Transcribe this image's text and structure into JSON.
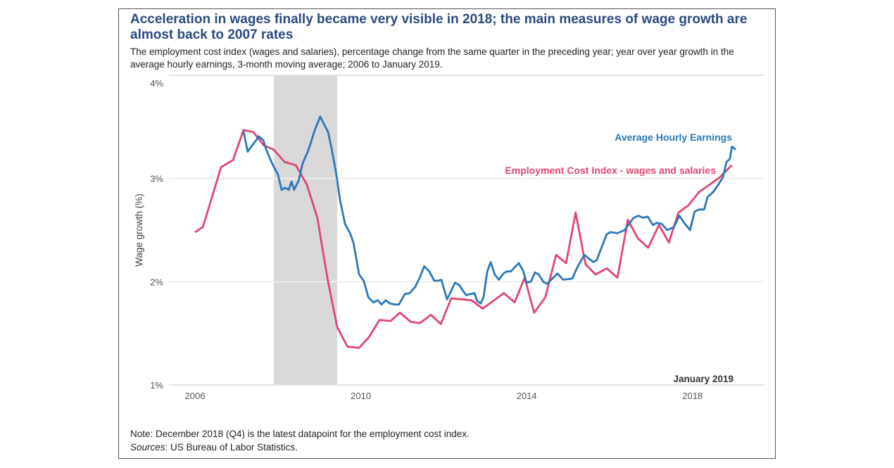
{
  "title": "Acceleration in wages finally became very visible in 2018; the main measures of wage growth are almost back to 2007 rates",
  "subtitle": "The employment cost index (wages and salaries), percentage change from the same quarter in the preceding year; year over year growth in the average hourly earnings, 3-month moving average; 2006 to January 2019.",
  "note": "Note: December 2018 (Q4) is the latest datapoint for the employment cost index.",
  "sources_label": "Sources",
  "sources_text": ": US Bureau of Labor Statistics.",
  "chart_data": {
    "type": "line",
    "ylabel": "Wage growth (%)",
    "xlabel": "",
    "xlim": [
      2005.55,
      2019.45
    ],
    "ylim": [
      1,
      4
    ],
    "x_ticks": [
      {
        "value": 2006,
        "label": "2006"
      },
      {
        "value": 2010,
        "label": "2010"
      },
      {
        "value": 2014,
        "label": "2014"
      },
      {
        "value": 2018,
        "label": "2018"
      }
    ],
    "y_ticks": [
      {
        "value": 1,
        "label": "1%"
      },
      {
        "value": 2,
        "label": "2%"
      },
      {
        "value": 3,
        "label": "3%"
      },
      {
        "value": 4,
        "label": "4%"
      }
    ],
    "grid": "horizontal",
    "annotation": "January 2019",
    "shaded_regions": [
      {
        "start": 2007.9,
        "end": 2009.43,
        "color": "#d9d9d9"
      }
    ],
    "series": [
      {
        "name": "Employment Cost Index - wages and salaries",
        "color": "#e0466e",
        "points": [
          [
            2006.0,
            2.48
          ],
          [
            2006.19,
            2.53
          ],
          [
            2006.63,
            3.11
          ],
          [
            2006.92,
            3.18
          ],
          [
            2007.17,
            3.47
          ],
          [
            2007.41,
            3.45
          ],
          [
            2007.66,
            3.32
          ],
          [
            2007.9,
            3.28
          ],
          [
            2008.16,
            3.16
          ],
          [
            2008.43,
            3.13
          ],
          [
            2008.7,
            2.94
          ],
          [
            2008.95,
            2.62
          ],
          [
            2009.2,
            2.02
          ],
          [
            2009.43,
            1.56
          ],
          [
            2009.68,
            1.37
          ],
          [
            2009.96,
            1.36
          ],
          [
            2010.19,
            1.46
          ],
          [
            2010.45,
            1.63
          ],
          [
            2010.72,
            1.62
          ],
          [
            2010.94,
            1.7
          ],
          [
            2011.21,
            1.61
          ],
          [
            2011.43,
            1.6
          ],
          [
            2011.69,
            1.68
          ],
          [
            2011.93,
            1.59
          ],
          [
            2012.18,
            1.84
          ],
          [
            2012.67,
            1.82
          ],
          [
            2012.94,
            1.74
          ],
          [
            2013.45,
            1.89
          ],
          [
            2013.71,
            1.8
          ],
          [
            2013.95,
            2.04
          ],
          [
            2014.18,
            1.7
          ],
          [
            2014.45,
            1.85
          ],
          [
            2014.71,
            2.26
          ],
          [
            2014.95,
            2.18
          ],
          [
            2015.18,
            2.67
          ],
          [
            2015.42,
            2.17
          ],
          [
            2015.66,
            2.07
          ],
          [
            2015.93,
            2.13
          ],
          [
            2016.19,
            2.04
          ],
          [
            2016.44,
            2.6
          ],
          [
            2016.68,
            2.42
          ],
          [
            2016.93,
            2.33
          ],
          [
            2017.19,
            2.55
          ],
          [
            2017.43,
            2.38
          ],
          [
            2017.66,
            2.67
          ],
          [
            2017.9,
            2.74
          ],
          [
            2018.16,
            2.87
          ],
          [
            2018.41,
            2.94
          ],
          [
            2018.65,
            3.01
          ],
          [
            2018.95,
            3.13
          ]
        ]
      },
      {
        "name": "Average Hourly Earnings",
        "color": "#2a78b9",
        "points": [
          [
            2007.17,
            3.46
          ],
          [
            2007.27,
            3.26
          ],
          [
            2007.38,
            3.32
          ],
          [
            2007.49,
            3.38
          ],
          [
            2007.53,
            3.41
          ],
          [
            2007.65,
            3.37
          ],
          [
            2007.7,
            3.3
          ],
          [
            2007.78,
            3.22
          ],
          [
            2007.88,
            3.13
          ],
          [
            2008.0,
            3.04
          ],
          [
            2008.09,
            2.89
          ],
          [
            2008.17,
            2.91
          ],
          [
            2008.26,
            2.89
          ],
          [
            2008.33,
            2.97
          ],
          [
            2008.39,
            2.89
          ],
          [
            2008.5,
            2.98
          ],
          [
            2008.6,
            3.15
          ],
          [
            2008.72,
            3.26
          ],
          [
            2008.78,
            3.33
          ],
          [
            2008.89,
            3.47
          ],
          [
            2009.02,
            3.6
          ],
          [
            2009.12,
            3.52
          ],
          [
            2009.21,
            3.45
          ],
          [
            2009.29,
            3.3
          ],
          [
            2009.4,
            3.06
          ],
          [
            2009.5,
            2.79
          ],
          [
            2009.62,
            2.56
          ],
          [
            2009.74,
            2.47
          ],
          [
            2009.82,
            2.38
          ],
          [
            2009.96,
            2.07
          ],
          [
            2010.07,
            2.01
          ],
          [
            2010.18,
            1.85
          ],
          [
            2010.3,
            1.8
          ],
          [
            2010.41,
            1.82
          ],
          [
            2010.5,
            1.78
          ],
          [
            2010.6,
            1.82
          ],
          [
            2010.7,
            1.79
          ],
          [
            2010.82,
            1.78
          ],
          [
            2010.92,
            1.78
          ],
          [
            2011.06,
            1.88
          ],
          [
            2011.18,
            1.89
          ],
          [
            2011.31,
            1.95
          ],
          [
            2011.42,
            2.04
          ],
          [
            2011.53,
            2.15
          ],
          [
            2011.65,
            2.1
          ],
          [
            2011.77,
            2.01
          ],
          [
            2011.87,
            2.01
          ],
          [
            2011.94,
            2.02
          ],
          [
            2012.08,
            1.83
          ],
          [
            2012.2,
            1.93
          ],
          [
            2012.27,
            1.99
          ],
          [
            2012.37,
            1.97
          ],
          [
            2012.45,
            1.92
          ],
          [
            2012.54,
            1.87
          ],
          [
            2012.64,
            1.88
          ],
          [
            2012.74,
            1.89
          ],
          [
            2012.81,
            1.81
          ],
          [
            2012.89,
            1.79
          ],
          [
            2012.96,
            1.85
          ],
          [
            2013.05,
            2.1
          ],
          [
            2013.13,
            2.19
          ],
          [
            2013.23,
            2.07
          ],
          [
            2013.33,
            2.02
          ],
          [
            2013.44,
            2.08
          ],
          [
            2013.52,
            2.1
          ],
          [
            2013.62,
            2.1
          ],
          [
            2013.71,
            2.14
          ],
          [
            2013.81,
            2.18
          ],
          [
            2013.91,
            2.11
          ],
          [
            2014.0,
            1.99
          ],
          [
            2014.1,
            2.0
          ],
          [
            2014.2,
            2.09
          ],
          [
            2014.29,
            2.07
          ],
          [
            2014.4,
            2.0
          ],
          [
            2014.49,
            1.98
          ],
          [
            2014.62,
            2.03
          ],
          [
            2014.74,
            2.08
          ],
          [
            2014.88,
            2.02
          ],
          [
            2015.1,
            2.03
          ],
          [
            2015.22,
            2.14
          ],
          [
            2015.39,
            2.26
          ],
          [
            2015.61,
            2.19
          ],
          [
            2015.69,
            2.21
          ],
          [
            2015.93,
            2.46
          ],
          [
            2016.02,
            2.48
          ],
          [
            2016.19,
            2.47
          ],
          [
            2016.36,
            2.5
          ],
          [
            2016.58,
            2.62
          ],
          [
            2016.7,
            2.64
          ],
          [
            2016.8,
            2.62
          ],
          [
            2016.92,
            2.63
          ],
          [
            2017.04,
            2.55
          ],
          [
            2017.14,
            2.57
          ],
          [
            2017.26,
            2.56
          ],
          [
            2017.39,
            2.5
          ],
          [
            2017.55,
            2.53
          ],
          [
            2017.68,
            2.64
          ],
          [
            2017.8,
            2.57
          ],
          [
            2017.94,
            2.5
          ],
          [
            2018.05,
            2.68
          ],
          [
            2018.16,
            2.7
          ],
          [
            2018.28,
            2.7
          ],
          [
            2018.36,
            2.82
          ],
          [
            2018.5,
            2.87
          ],
          [
            2018.62,
            2.94
          ],
          [
            2018.73,
            3.01
          ],
          [
            2018.82,
            3.16
          ],
          [
            2018.9,
            3.19
          ],
          [
            2018.95,
            3.31
          ],
          [
            2019.04,
            3.28
          ]
        ]
      }
    ]
  }
}
